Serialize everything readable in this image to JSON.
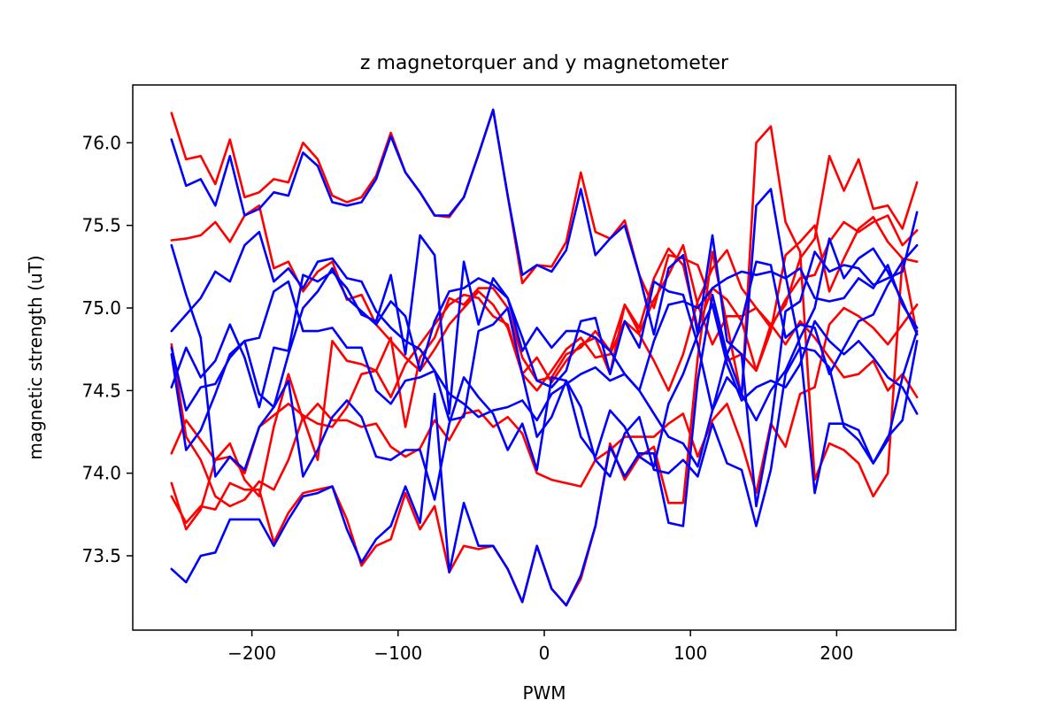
{
  "chart_data": {
    "type": "line",
    "title": "z magnetorquer and y magnetometer",
    "xlabel": "PWM",
    "ylabel": "magnetic strength (uT)",
    "xlim": [
      -281.5,
      281.5
    ],
    "ylim": [
      73.05,
      76.35
    ],
    "x_ticks": [
      -200,
      -100,
      0,
      100,
      200
    ],
    "x_tick_labels": [
      "−200",
      "−100",
      "0",
      "100",
      "200"
    ],
    "y_ticks": [
      73.5,
      74.0,
      74.5,
      75.0,
      75.5,
      76.0
    ],
    "y_tick_labels": [
      "73.5",
      "74.0",
      "74.5",
      "75.0",
      "75.5",
      "76.0"
    ],
    "grid": false,
    "legend": "none",
    "x": [
      -255,
      -245,
      -235,
      -225,
      -215,
      -205,
      -195,
      -185,
      -175,
      -165,
      -155,
      -145,
      -135,
      -125,
      -115,
      -105,
      -95,
      -85,
      -75,
      -65,
      -55,
      -45,
      -35,
      -25,
      -15,
      -5,
      5,
      15,
      25,
      35,
      45,
      55,
      65,
      75,
      85,
      95,
      105,
      115,
      125,
      135,
      145,
      155,
      165,
      175,
      185,
      195,
      205,
      215,
      225,
      235,
      245,
      255
    ],
    "series": [
      {
        "color": "#ff0000",
        "values": [
          76.18,
          75.9,
          75.92,
          75.75,
          76.02,
          75.67,
          75.7,
          75.78,
          75.76,
          76.0,
          75.9,
          75.68,
          75.64,
          75.67,
          75.8,
          76.06,
          75.82,
          75.7,
          75.56,
          75.55,
          75.67,
          75.93,
          76.2,
          75.68,
          75.15,
          75.26,
          75.25,
          75.4,
          75.82,
          75.46,
          75.42,
          75.53,
          75.2,
          75.0,
          75.32,
          75.3,
          75.26,
          75.02,
          74.68,
          74.72,
          74.62,
          74.9,
          75.02,
          75.3,
          75.42,
          75.92,
          75.71,
          75.9,
          75.6,
          75.62,
          75.48,
          75.76
        ]
      },
      {
        "color": "#ff0000",
        "values": [
          75.41,
          75.42,
          75.44,
          75.52,
          75.4,
          75.56,
          75.62,
          75.24,
          75.28,
          75.1,
          75.22,
          75.28,
          75.05,
          75.08,
          74.9,
          74.8,
          74.7,
          74.62,
          74.75,
          74.9,
          75.0,
          75.1,
          75.02,
          74.88,
          74.6,
          74.7,
          74.55,
          74.68,
          74.78,
          74.82,
          74.6,
          75.02,
          74.85,
          75.05,
          75.2,
          75.38,
          75.02,
          74.78,
          74.95,
          74.95,
          75.0,
          74.88,
          75.05,
          75.18,
          75.2,
          75.4,
          75.52,
          75.46,
          75.52,
          75.56,
          75.38,
          75.47
        ]
      },
      {
        "color": "#ff0000",
        "values": [
          74.12,
          74.32,
          74.2,
          74.08,
          74.1,
          74.0,
          74.28,
          74.35,
          74.42,
          74.35,
          74.3,
          74.28,
          74.4,
          74.6,
          74.62,
          74.82,
          74.28,
          74.7,
          74.82,
          75.06,
          75.02,
          75.12,
          75.12,
          75.0,
          74.7,
          74.56,
          74.58,
          74.72,
          74.76,
          74.86,
          74.74,
          75.02,
          74.88,
          75.18,
          75.36,
          75.26,
          74.88,
          75.12,
          75.05,
          74.92,
          74.62,
          74.86,
          75.32,
          75.4,
          75.5,
          75.1,
          75.3,
          75.48,
          75.55,
          75.4,
          75.3,
          75.28
        ]
      },
      {
        "color": "#ff0000",
        "values": [
          74.78,
          74.22,
          74.08,
          73.86,
          73.8,
          73.84,
          73.95,
          73.9,
          74.08,
          74.34,
          74.08,
          74.8,
          74.68,
          74.66,
          74.62,
          74.46,
          74.66,
          74.78,
          74.9,
          75.02,
          75.08,
          75.06,
          74.95,
          74.9,
          74.6,
          74.5,
          74.62,
          74.75,
          74.82,
          74.7,
          74.72,
          74.92,
          74.84,
          74.68,
          74.5,
          74.72,
          75.04,
          75.24,
          75.35,
          75.12,
          75.0,
          74.9,
          74.78,
          74.92,
          74.82,
          74.7,
          74.58,
          74.6,
          74.68,
          74.5,
          74.6,
          74.46
        ]
      },
      {
        "color": "#ff0000",
        "values": [
          73.94,
          73.66,
          73.78,
          74.08,
          74.18,
          73.96,
          73.86,
          74.28,
          74.6,
          74.32,
          74.42,
          74.32,
          74.32,
          74.28,
          74.3,
          74.16,
          74.1,
          74.15,
          74.32,
          74.2,
          74.36,
          74.38,
          74.28,
          74.34,
          74.24,
          74.0,
          73.96,
          73.94,
          73.92,
          74.08,
          74.14,
          74.22,
          74.22,
          74.22,
          74.3,
          74.36,
          74.1,
          74.32,
          74.42,
          74.18,
          73.88,
          74.3,
          74.16,
          74.48,
          74.52,
          74.9,
          75.0,
          74.95,
          74.88,
          74.78,
          74.9,
          75.02
        ]
      },
      {
        "color": "#ff0000",
        "values": [
          73.86,
          73.7,
          73.8,
          73.78,
          73.94,
          73.9,
          73.9,
          73.58,
          73.76,
          73.88,
          73.9,
          73.92,
          73.72,
          73.44,
          73.56,
          73.6,
          73.88,
          73.66,
          73.8,
          73.4,
          73.56,
          73.54,
          73.56,
          73.42,
          73.22,
          73.56,
          73.3,
          73.2,
          73.36,
          73.68,
          74.18,
          73.96,
          74.1,
          74.16,
          73.82,
          73.82,
          74.7,
          75.34,
          74.9,
          74.46,
          76.0,
          76.1,
          75.52,
          75.34,
          73.96,
          74.18,
          74.14,
          74.06,
          73.86,
          74.0,
          75.3,
          74.84
        ]
      },
      {
        "color": "#0000ff",
        "values": [
          76.02,
          75.74,
          75.78,
          75.62,
          75.92,
          75.56,
          75.6,
          75.7,
          75.68,
          75.94,
          75.86,
          75.64,
          75.62,
          75.64,
          75.78,
          76.04,
          75.82,
          75.7,
          75.56,
          75.56,
          75.67,
          75.93,
          76.2,
          75.68,
          75.2,
          75.26,
          75.22,
          75.35,
          75.72,
          75.32,
          75.42,
          75.5,
          75.2,
          74.84,
          75.24,
          75.32,
          74.84,
          75.44,
          74.8,
          74.72,
          73.8,
          74.28,
          74.98,
          75.04,
          75.34,
          75.22,
          75.26,
          75.24,
          75.14,
          75.18,
          75.22,
          75.58
        ]
      },
      {
        "color": "#0000ff",
        "values": [
          75.38,
          75.08,
          74.82,
          73.98,
          74.1,
          74.02,
          74.28,
          74.4,
          74.72,
          75.0,
          75.1,
          75.24,
          75.06,
          74.98,
          74.9,
          75.04,
          74.95,
          74.62,
          74.92,
          75.1,
          75.12,
          75.18,
          75.14,
          75.06,
          74.82,
          74.56,
          74.52,
          74.62,
          74.92,
          74.94,
          74.6,
          74.92,
          74.76,
          75.16,
          75.1,
          75.08,
          74.78,
          74.38,
          74.72,
          74.92,
          75.28,
          75.26,
          74.82,
          74.9,
          74.88,
          74.6,
          74.76,
          74.92,
          74.96,
          75.14,
          75.28,
          75.38
        ]
      },
      {
        "color": "#0000ff",
        "values": [
          74.86,
          74.96,
          75.06,
          75.22,
          75.16,
          75.38,
          75.46,
          75.16,
          75.24,
          75.12,
          75.28,
          75.3,
          75.18,
          75.16,
          74.98,
          74.88,
          74.8,
          74.75,
          74.62,
          74.48,
          74.42,
          74.34,
          74.38,
          74.4,
          74.44,
          74.32,
          74.48,
          74.54,
          74.6,
          74.64,
          74.56,
          74.6,
          74.5,
          74.36,
          74.22,
          74.18,
          74.04,
          74.38,
          74.58,
          74.48,
          74.32,
          74.5,
          74.62,
          74.82,
          75.0,
          75.42,
          75.18,
          75.3,
          75.36,
          75.22,
          75.04,
          74.84
        ]
      },
      {
        "color": "#0000ff",
        "values": [
          74.52,
          74.76,
          74.58,
          74.68,
          74.9,
          74.7,
          74.4,
          74.76,
          74.74,
          75.2,
          75.16,
          75.22,
          75.12,
          74.96,
          74.92,
          75.2,
          74.72,
          75.44,
          75.32,
          74.36,
          75.28,
          74.9,
          75.18,
          75.06,
          74.74,
          74.88,
          74.76,
          74.86,
          74.86,
          74.82,
          74.74,
          74.6,
          74.5,
          74.8,
          75.02,
          75.04,
          75.0,
          75.12,
          75.18,
          75.22,
          75.2,
          75.22,
          75.18,
          75.24,
          75.06,
          75.04,
          75.06,
          75.18,
          75.12,
          75.26,
          75.02,
          74.88
        ]
      },
      {
        "color": "#0000ff",
        "values": [
          74.72,
          74.14,
          74.26,
          74.48,
          74.72,
          74.8,
          74.82,
          75.1,
          75.16,
          74.86,
          74.86,
          74.88,
          74.76,
          74.76,
          74.5,
          74.42,
          74.56,
          74.58,
          74.62,
          74.32,
          74.34,
          74.86,
          74.9,
          75.0,
          74.6,
          74.22,
          74.34,
          74.56,
          74.22,
          74.1,
          74.38,
          74.28,
          74.1,
          74.04,
          74.42,
          74.6,
          74.84,
          75.02,
          74.66,
          74.44,
          74.52,
          74.56,
          74.52,
          74.66,
          74.92,
          74.8,
          74.72,
          74.8,
          74.7,
          74.58,
          74.52,
          74.36
        ]
      },
      {
        "color": "#0000ff",
        "values": [
          74.76,
          74.38,
          74.52,
          74.54,
          74.7,
          74.8,
          74.48,
          74.4,
          74.56,
          73.98,
          74.14,
          74.34,
          74.44,
          74.34,
          74.1,
          74.08,
          74.14,
          74.14,
          73.84,
          74.3,
          74.58,
          74.46,
          74.36,
          74.14,
          74.3,
          74.02,
          74.58,
          74.56,
          74.4,
          74.08,
          73.98,
          74.24,
          74.34,
          74.02,
          74.0,
          74.08,
          73.98,
          74.3,
          74.06,
          74.02,
          73.68,
          74.02,
          74.6,
          74.76,
          74.74,
          74.64,
          74.28,
          74.2,
          74.06,
          74.22,
          74.32,
          74.8
        ]
      },
      {
        "color": "#0000ff",
        "values": [
          73.42,
          73.34,
          73.5,
          73.52,
          73.72,
          73.72,
          73.72,
          73.56,
          73.72,
          73.86,
          73.88,
          73.92,
          73.66,
          73.46,
          73.6,
          73.68,
          73.92,
          73.7,
          74.48,
          73.4,
          73.82,
          73.56,
          73.56,
          73.42,
          73.22,
          73.56,
          73.3,
          73.2,
          73.38,
          73.68,
          74.16,
          73.98,
          74.12,
          74.12,
          73.7,
          73.68,
          74.56,
          75.08,
          74.72,
          74.48,
          75.62,
          75.72,
          75.2,
          74.76,
          73.88,
          74.3,
          74.3,
          74.26,
          74.06,
          74.2,
          74.58,
          74.86
        ]
      }
    ]
  }
}
